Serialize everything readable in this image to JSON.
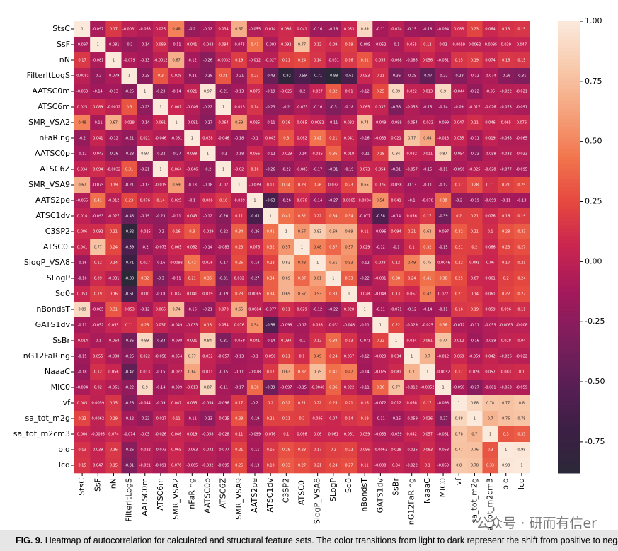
{
  "chart_data": {
    "type": "heatmap",
    "x_labels": [
      "StsC",
      "SsF",
      "nN",
      "FilterItLogS",
      "AATSC0m",
      "ATSC6m",
      "SMR_VSA2",
      "nFaRing",
      "AATSC0p",
      "ATSC6Z",
      "SMR_VSA9",
      "AATS2pe",
      "ATSC1dv",
      "C3SP2",
      "ATSC0i",
      "SlogP_VSA8",
      "SLogP",
      "Sd0",
      "nBondsT",
      "GATS1dv",
      "SsBr",
      "nG12FaRing",
      "NaaaC",
      "MIC0",
      "vf",
      "sa_tot_m2g",
      "sa_tot_m2cm3",
      "pld",
      "lcd"
    ],
    "y_labels": [
      "StsC",
      "SsF",
      "nN",
      "FilterItLogS",
      "AATSC0m",
      "ATSC6m",
      "SMR_VSA2",
      "nFaRing",
      "AATSC0p",
      "ATSC6Z",
      "SMR_VSA9",
      "AATS2pe",
      "ATSC1dv",
      "C3SP2",
      "ATSC0i",
      "SlogP_VSA8",
      "SLogP",
      "Sd0",
      "nBondsT",
      "GATS1dv",
      "SsBr",
      "nG12FaRing",
      "NaaaC",
      "MIC0",
      "vf",
      "sa_tot_m2g",
      "sa_tot_m2cm3",
      "pld",
      "lcd"
    ],
    "z": [
      [
        1,
        -0.097,
        0.17,
        -0.0081,
        -0.063,
        0.025,
        0.48,
        -0.2,
        -0.12,
        0.034,
        0.67,
        -0.055,
        0.014,
        0.086,
        0.041,
        -0.16,
        -0.16,
        0.053,
        0.89,
        -0.11,
        -0.014,
        -0.15,
        -0.18,
        -0.094,
        0.085,
        0.23,
        0.064,
        0.13,
        0.15
      ],
      [
        -0.097,
        1,
        -0.081,
        -0.2,
        -0.14,
        0.089,
        -0.11,
        0.041,
        -0.043,
        0.094,
        -0.075,
        0.41,
        -0.093,
        0.092,
        0.77,
        0.12,
        0.09,
        0.19,
        -0.085,
        -0.052,
        -0.1,
        0.055,
        0.12,
        0.02,
        0.0059,
        0.0062,
        -0.0095,
        0.039,
        0.047
      ],
      [
        0.17,
        -0.081,
        1,
        -0.079,
        -0.13,
        -0.0012,
        0.67,
        -0.12,
        -0.26,
        -0.0032,
        0.19,
        -0.012,
        -0.027,
        0.21,
        0.24,
        0.14,
        -0.031,
        0.16,
        0.31,
        0.055,
        -0.068,
        -0.088,
        0.056,
        -0.061,
        0.15,
        0.19,
        0.074,
        0.16,
        0.15
      ],
      [
        -0.0081,
        -0.2,
        -0.079,
        1,
        -0.25,
        0.3,
        0.028,
        -0.21,
        -0.28,
        0.31,
        -0.21,
        0.23,
        -0.43,
        -0.82,
        -0.59,
        -0.71,
        -0.88,
        -0.61,
        0.053,
        0.11,
        -0.36,
        -0.25,
        -0.47,
        -0.22,
        -0.28,
        -0.12,
        -0.074,
        -0.26,
        -0.31
      ],
      [
        -0.063,
        -0.14,
        -0.13,
        -0.25,
        1,
        -0.23,
        -0.14,
        0.021,
        0.97,
        -0.21,
        -0.13,
        0.076,
        -0.19,
        -0.025,
        -0.2,
        0.027,
        0.32,
        0.01,
        -0.12,
        0.25,
        0.89,
        0.022,
        0.013,
        0.9,
        -0.044,
        -0.22,
        -0.05,
        -0.022,
        -0.021
      ],
      [
        0.025,
        0.089,
        -0.0012,
        0.3,
        -0.23,
        1,
        0.061,
        -0.046,
        -0.22,
        1,
        -0.015,
        0.14,
        -0.23,
        -0.2,
        -0.073,
        -0.16,
        -0.3,
        -0.18,
        0.065,
        0.037,
        -0.33,
        -0.058,
        -0.15,
        -0.14,
        -0.09,
        -0.017,
        -0.026,
        -0.073,
        -0.091
      ],
      [
        0.48,
        -0.11,
        0.67,
        0.028,
        -0.14,
        0.061,
        1,
        -0.081,
        -0.27,
        0.064,
        0.59,
        0.025,
        -0.11,
        0.16,
        0.065,
        0.0092,
        -0.11,
        0.032,
        0.74,
        -0.049,
        -0.098,
        -0.054,
        -0.022,
        -0.099,
        0.047,
        0.11,
        0.046,
        0.065,
        0.076
      ],
      [
        -0.2,
        0.041,
        -0.12,
        -0.21,
        0.021,
        -0.046,
        -0.081,
        1,
        0.038,
        -0.046,
        -0.18,
        -0.1,
        0.043,
        0.3,
        0.062,
        0.42,
        0.21,
        0.041,
        -0.16,
        -0.033,
        0.021,
        0.77,
        0.64,
        -0.013,
        0.035,
        -0.11,
        0.019,
        -0.063,
        -0.065
      ],
      [
        -0.12,
        -0.043,
        -0.26,
        -0.28,
        0.97,
        -0.22,
        -0.27,
        0.038,
        1,
        -0.2,
        -0.18,
        0.066,
        -0.12,
        -0.029,
        -0.14,
        0.026,
        0.36,
        0.019,
        -0.21,
        0.18,
        0.84,
        0.032,
        0.011,
        0.87,
        -0.054,
        -0.23,
        -0.058,
        -0.032,
        -0.032
      ],
      [
        0.034,
        0.094,
        -0.0032,
        0.31,
        -0.21,
        1,
        0.064,
        -0.046,
        -0.2,
        1,
        -0.02,
        0.16,
        -0.26,
        -0.22,
        -0.083,
        -0.17,
        -0.31,
        -0.19,
        0.073,
        0.054,
        -0.31,
        -0.057,
        -0.15,
        -0.11,
        -0.096,
        -0.025,
        -0.028,
        -0.077,
        -0.095
      ],
      [
        0.67,
        -0.075,
        0.19,
        -0.21,
        -0.13,
        -0.015,
        0.59,
        -0.18,
        -0.18,
        -0.02,
        1,
        -0.039,
        0.11,
        0.34,
        0.23,
        0.26,
        0.032,
        0.23,
        0.65,
        0.076,
        -0.058,
        -0.13,
        -0.11,
        -0.17,
        0.17,
        0.28,
        0.11,
        0.21,
        0.25
      ],
      [
        -0.055,
        0.41,
        -0.012,
        0.23,
        0.076,
        0.14,
        0.025,
        -0.1,
        0.066,
        0.16,
        -0.039,
        1,
        -0.63,
        -0.26,
        0.076,
        -0.14,
        -0.27,
        0.0065,
        0.0084,
        0.54,
        0.041,
        -0.1,
        -0.078,
        0.38,
        -0.2,
        -0.19,
        -0.099,
        -0.11,
        -0.13
      ],
      [
        0.014,
        -0.093,
        -0.027,
        -0.43,
        -0.19,
        -0.23,
        -0.11,
        0.043,
        -0.12,
        -0.26,
        0.11,
        -0.63,
        1,
        0.41,
        0.32,
        0.22,
        0.34,
        0.34,
        -0.077,
        -0.58,
        -0.14,
        0.056,
        0.17,
        -0.39,
        0.2,
        0.21,
        0.076,
        0.16,
        0.19
      ],
      [
        0.086,
        0.092,
        0.21,
        -0.82,
        -0.025,
        -0.2,
        0.16,
        0.3,
        -0.029,
        -0.22,
        0.34,
        -0.26,
        0.41,
        1,
        0.57,
        0.83,
        0.69,
        0.69,
        0.11,
        -0.096,
        0.094,
        0.21,
        0.63,
        -0.097,
        0.32,
        0.21,
        0.1,
        0.28,
        0.33
      ],
      [
        0.041,
        0.77,
        0.24,
        -0.59,
        -0.2,
        -0.073,
        0.065,
        0.062,
        -0.14,
        -0.083,
        0.23,
        0.076,
        0.32,
        0.57,
        1,
        0.48,
        0.37,
        0.57,
        0.029,
        -0.12,
        -0.1,
        0.1,
        0.32,
        -0.15,
        0.21,
        0.2,
        0.066,
        0.23,
        0.27
      ],
      [
        -0.16,
        0.12,
        0.14,
        -0.71,
        0.027,
        -0.16,
        0.0092,
        0.42,
        0.026,
        -0.17,
        0.26,
        -0.14,
        0.22,
        0.83,
        0.48,
        1,
        0.61,
        0.53,
        -0.12,
        0.038,
        0.12,
        0.49,
        0.75,
        -0.0046,
        0.22,
        0.095,
        0.06,
        0.17,
        0.21
      ],
      [
        -0.16,
        0.09,
        -0.031,
        -0.88,
        0.32,
        -0.3,
        -0.11,
        0.21,
        0.36,
        -0.31,
        0.032,
        -0.27,
        0.34,
        0.69,
        0.37,
        0.61,
        1,
        0.33,
        -0.22,
        -0.031,
        0.38,
        0.24,
        0.41,
        0.36,
        0.25,
        0.07,
        0.061,
        0.2,
        0.24
      ],
      [
        0.053,
        0.19,
        0.16,
        -0.61,
        0.01,
        -0.18,
        0.032,
        0.041,
        0.019,
        -0.19,
        0.23,
        0.0065,
        0.34,
        0.69,
        0.57,
        0.53,
        0.33,
        1,
        0.028,
        -0.048,
        0.13,
        0.067,
        0.47,
        0.022,
        0.21,
        0.14,
        0.061,
        0.22,
        0.27
      ],
      [
        0.89,
        -0.085,
        0.31,
        0.053,
        -0.12,
        0.065,
        0.74,
        -0.16,
        -0.21,
        0.073,
        0.65,
        0.0084,
        -0.077,
        0.11,
        0.029,
        -0.12,
        -0.22,
        0.028,
        1,
        -0.11,
        -0.071,
        -0.12,
        -0.14,
        -0.11,
        0.16,
        0.19,
        0.059,
        0.096,
        0.11
      ],
      [
        -0.11,
        -0.052,
        0.055,
        0.11,
        0.25,
        0.037,
        -0.049,
        -0.033,
        0.18,
        0.054,
        0.076,
        0.54,
        -0.58,
        -0.096,
        -0.12,
        0.038,
        -0.031,
        -0.048,
        -0.11,
        1,
        0.22,
        -0.029,
        -0.025,
        0.36,
        -0.072,
        -0.11,
        -0.053,
        -0.0063,
        -0.008
      ],
      [
        -0.014,
        -0.1,
        -0.068,
        -0.36,
        0.89,
        -0.33,
        -0.098,
        0.021,
        0.84,
        -0.31,
        -0.058,
        0.041,
        -0.14,
        0.094,
        -0.1,
        0.12,
        0.38,
        0.13,
        -0.071,
        0.22,
        1,
        0.034,
        0.081,
        0.77,
        0.012,
        -0.16,
        -0.059,
        0.028,
        0.04
      ],
      [
        -0.15,
        0.055,
        -0.088,
        -0.25,
        0.022,
        -0.058,
        -0.054,
        0.77,
        0.032,
        -0.057,
        -0.13,
        -0.1,
        0.056,
        0.21,
        0.1,
        0.49,
        0.24,
        0.067,
        -0.12,
        -0.029,
        0.034,
        1,
        0.7,
        -0.012,
        0.068,
        -0.059,
        0.042,
        -0.026,
        -0.022
      ],
      [
        -0.18,
        0.12,
        0.056,
        -0.47,
        0.013,
        -0.15,
        -0.022,
        0.64,
        0.011,
        -0.15,
        -0.11,
        -0.078,
        0.17,
        0.63,
        0.32,
        0.75,
        0.41,
        0.47,
        -0.14,
        -0.025,
        0.081,
        0.7,
        1,
        -0.0052,
        0.17,
        0.026,
        0.057,
        0.083,
        0.1
      ],
      [
        -0.094,
        0.02,
        -0.061,
        -0.22,
        0.9,
        -0.14,
        -0.099,
        -0.013,
        0.87,
        -0.11,
        -0.17,
        0.38,
        -0.39,
        -0.097,
        -0.15,
        -0.0046,
        0.36,
        0.022,
        -0.11,
        0.36,
        0.77,
        -0.012,
        -0.0052,
        1,
        -0.098,
        -0.27,
        -0.081,
        -0.053,
        -0.059
      ],
      [
        0.085,
        0.0059,
        0.15,
        -0.28,
        -0.044,
        -0.09,
        0.047,
        0.035,
        -0.054,
        -0.096,
        0.17,
        -0.2,
        0.2,
        0.32,
        0.21,
        0.22,
        0.25,
        0.21,
        0.16,
        -0.072,
        0.012,
        0.068,
        0.17,
        -0.098,
        1,
        0.88,
        0.78,
        0.77,
        0.8
      ],
      [
        0.23,
        0.0062,
        0.19,
        -0.12,
        -0.22,
        -0.017,
        0.11,
        -0.11,
        -0.23,
        -0.025,
        0.28,
        -0.19,
        0.21,
        0.21,
        0.2,
        0.095,
        0.07,
        0.14,
        0.19,
        -0.11,
        -0.16,
        -0.059,
        0.026,
        -0.27,
        0.88,
        1,
        0.7,
        0.76,
        0.78
      ],
      [
        0.064,
        -0.0095,
        0.074,
        -0.074,
        -0.05,
        -0.026,
        0.046,
        0.019,
        -0.058,
        -0.028,
        0.11,
        -0.099,
        0.076,
        0.1,
        0.066,
        0.06,
        0.061,
        0.061,
        0.059,
        -0.053,
        -0.059,
        0.042,
        0.057,
        -0.081,
        0.78,
        0.7,
        1,
        0.3,
        0.33
      ],
      [
        0.13,
        0.039,
        0.16,
        -0.26,
        -0.022,
        -0.073,
        0.065,
        -0.063,
        -0.032,
        -0.077,
        0.21,
        -0.11,
        0.16,
        0.28,
        0.23,
        0.17,
        0.2,
        0.22,
        0.096,
        -0.0063,
        0.028,
        -0.026,
        0.083,
        -0.053,
        0.77,
        0.76,
        0.3,
        1,
        0.98
      ],
      [
        0.15,
        0.047,
        0.15,
        -0.31,
        -0.021,
        -0.091,
        0.076,
        -0.065,
        -0.032,
        -0.095,
        0.25,
        -0.13,
        0.19,
        0.33,
        0.27,
        0.21,
        0.24,
        0.27,
        0.11,
        -0.008,
        0.04,
        -0.022,
        0.1,
        -0.059,
        0.8,
        0.78,
        0.33,
        0.98,
        1
      ]
    ],
    "zlim": [
      -0.88,
      1
    ],
    "zticks": [
      {
        "value": 1,
        "label": "1.00"
      },
      {
        "value": 0.75,
        "label": "0.75"
      },
      {
        "value": 0.5,
        "label": "0.50"
      },
      {
        "value": 0.25,
        "label": "0.25"
      },
      {
        "value": 0,
        "label": "0.00"
      },
      {
        "value": -0.25,
        "label": "-0.25"
      },
      {
        "value": -0.5,
        "label": "-0.50"
      },
      {
        "value": -0.75,
        "label": "-0.75"
      }
    ],
    "colorscale": [
      "#2b2838",
      "#3d1f45",
      "#5a1f55",
      "#7e1e5c",
      "#a3195b",
      "#c92550",
      "#e5483f",
      "#f2764e",
      "#f5a37d",
      "#f8cbad",
      "#fbe9dc"
    ],
    "annotate": true
  },
  "caption": {
    "label": "FIG. 9.",
    "text": "Heatmap of autocorrelation for calculated and structural feature sets. The color transitions from light to dark represent the shift from positive to negative correlations."
  },
  "watermark": "公众号 · 研而有信er"
}
